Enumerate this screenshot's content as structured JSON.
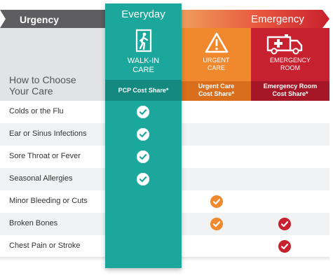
{
  "header": {
    "urgency": "Urgency",
    "everyday": "Everyday",
    "emergency": "Emergency"
  },
  "how_to_choose": "How to Choose Your Care",
  "columns": [
    {
      "label": "WALK-IN CARE",
      "cost": "PCP Cost Share*",
      "color": "#1ba79b",
      "icon": "walk-in-door-icon"
    },
    {
      "label": "URGENT CARE",
      "cost": "Urgent Care Cost Share*",
      "color": "#f0892e",
      "icon": "warning-triangle-icon"
    },
    {
      "label": "EMERGENCY ROOM",
      "cost": "Emergency Room Cost Share*",
      "color": "#c7202f",
      "icon": "ambulance-icon"
    }
  ],
  "rows": [
    {
      "label": "Colds or the Flu",
      "walk_in": true,
      "urgent": false,
      "emergency": false
    },
    {
      "label": "Ear or Sinus Infections",
      "walk_in": true,
      "urgent": false,
      "emergency": false
    },
    {
      "label": "Sore Throat or Fever",
      "walk_in": true,
      "urgent": false,
      "emergency": false
    },
    {
      "label": "Seasonal Allergies",
      "walk_in": true,
      "urgent": false,
      "emergency": false
    },
    {
      "label": "Minor Bleeding or Cuts",
      "walk_in": false,
      "urgent": true,
      "emergency": false
    },
    {
      "label": "Broken Bones",
      "walk_in": false,
      "urgent": true,
      "emergency": true
    },
    {
      "label": "Chest Pain or Stroke",
      "walk_in": false,
      "urgent": false,
      "emergency": true
    }
  ]
}
